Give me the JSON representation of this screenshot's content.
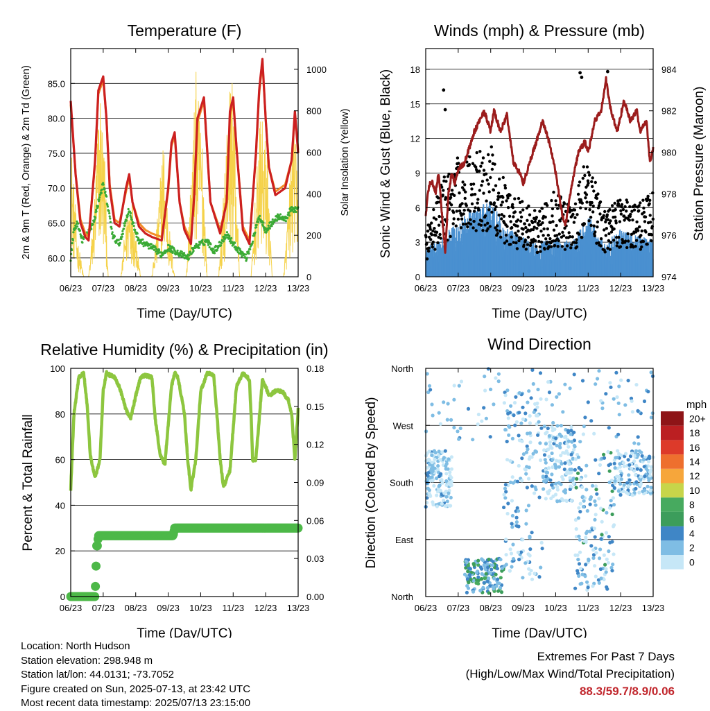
{
  "chart_data": [
    {
      "type": "line",
      "title": "Temperature (F)",
      "xlabel": "Time (Day/UTC)",
      "ylabel_left": "2m & 9m T (Red, Orange) & 2m Td (Green)",
      "ylabel_right": "Solar Insolation (Yellow)",
      "x_ticks": [
        "06/23",
        "07/23",
        "08/23",
        "09/23",
        "10/23",
        "11/23",
        "12/23",
        "13/23"
      ],
      "y_ticks_left": [
        "60.0",
        "65.0",
        "70.0",
        "75.0",
        "80.0",
        "85.0"
      ],
      "y_ticks_right": [
        "0",
        "200",
        "400",
        "600",
        "800",
        "1000"
      ],
      "ylim_left": [
        57.3,
        90.0
      ],
      "ylim_right": [
        0,
        1100
      ],
      "xlim_days": [
        0,
        7
      ],
      "series": [
        {
          "name": "2m T",
          "color": "#cc2020",
          "x": [
            0,
            0.15,
            0.3,
            0.45,
            0.55,
            0.75,
            0.85,
            1.0,
            1.1,
            1.2,
            1.35,
            1.5,
            1.7,
            1.8,
            1.9,
            2.1,
            2.3,
            2.5,
            2.8,
            3.0,
            3.1,
            3.2,
            3.35,
            3.5,
            3.7,
            3.8,
            3.9,
            4.1,
            4.3,
            4.6,
            4.8,
            4.9,
            5.0,
            5.1,
            5.3,
            5.5,
            5.7,
            5.8,
            5.9,
            6.0,
            6.1,
            6.3,
            6.6,
            6.8,
            6.9,
            7.0
          ],
          "values": [
            82.5,
            72.0,
            65.0,
            63.0,
            62.5,
            74.0,
            84.0,
            86.0,
            80.0,
            70.0,
            65.0,
            64.5,
            70.0,
            72.0,
            68.0,
            64.5,
            63.5,
            63.0,
            62.5,
            70.0,
            76.5,
            78.0,
            68.0,
            64.0,
            62.0,
            69.0,
            80.0,
            83.0,
            68.0,
            63.5,
            68.0,
            81.0,
            83.0,
            76.0,
            64.0,
            62.0,
            75.0,
            84.0,
            88.5,
            80.0,
            73.0,
            69.0,
            70.0,
            74.0,
            81.0,
            75.0
          ]
        },
        {
          "name": "9m T",
          "color": "#f28c28",
          "x": [
            0,
            0.15,
            0.3,
            0.45,
            0.55,
            0.75,
            0.85,
            1.0,
            1.1,
            1.2,
            1.35,
            1.5,
            1.7,
            1.8,
            1.9,
            2.1,
            2.3,
            2.5,
            2.8,
            3.0,
            3.1,
            3.2,
            3.35,
            3.5,
            3.7,
            3.8,
            3.9,
            4.1,
            4.3,
            4.6,
            4.8,
            4.9,
            5.0,
            5.1,
            5.3,
            5.5,
            5.7,
            5.8,
            5.9,
            6.0,
            6.1,
            6.3,
            6.6,
            6.8,
            6.9,
            7.0
          ],
          "values": [
            82.0,
            72.0,
            65.5,
            63.5,
            63.0,
            73.5,
            83.5,
            85.5,
            80.0,
            70.5,
            65.5,
            65.0,
            69.5,
            71.5,
            68.0,
            65.0,
            64.0,
            63.5,
            63.0,
            69.5,
            76.0,
            77.5,
            68.0,
            64.5,
            62.5,
            68.5,
            79.5,
            82.5,
            68.0,
            64.0,
            68.0,
            80.5,
            82.5,
            76.0,
            64.5,
            62.5,
            74.5,
            83.5,
            88.0,
            80.0,
            73.0,
            69.5,
            70.5,
            74.0,
            80.5,
            75.5
          ]
        },
        {
          "name": "2m Td",
          "color": "#3aaa35",
          "x": [
            0,
            0.1,
            0.2,
            0.35,
            0.5,
            0.7,
            0.9,
            1.0,
            1.1,
            1.3,
            1.5,
            1.7,
            1.8,
            1.9,
            2.1,
            2.3,
            2.5,
            2.8,
            3.0,
            3.2,
            3.4,
            3.6,
            3.8,
            4.0,
            4.2,
            4.4,
            4.6,
            4.8,
            5.0,
            5.2,
            5.4,
            5.6,
            5.8,
            6.0,
            6.2,
            6.4,
            6.6,
            6.8,
            7.0
          ],
          "values": [
            60.0,
            64.0,
            65.0,
            62.5,
            63.5,
            65.0,
            69.0,
            70.5,
            68.5,
            63.0,
            62.0,
            65.5,
            67.0,
            65.0,
            62.5,
            62.0,
            61.5,
            60.5,
            61.5,
            61.0,
            60.5,
            60.0,
            61.5,
            62.0,
            62.5,
            61.0,
            62.0,
            63.5,
            62.0,
            61.0,
            60.0,
            62.5,
            66.0,
            64.0,
            65.0,
            66.0,
            65.5,
            67.0,
            67.0
          ]
        },
        {
          "name": "Solar Insolation",
          "color": "#f5d24a",
          "x": [
            0,
            0.2,
            0.4,
            0.55,
            0.7,
            0.9,
            1.05,
            1.15,
            1.3,
            1.55,
            1.7,
            1.85,
            2.0,
            2.15,
            2.3,
            2.5,
            2.65,
            2.85,
            3.0,
            3.2,
            3.35,
            3.55,
            3.7,
            3.85,
            4.05,
            4.2,
            4.35,
            4.55,
            4.7,
            4.85,
            5.0,
            5.2,
            5.35,
            5.55,
            5.7,
            5.85,
            6.05,
            6.2,
            6.35,
            6.55,
            6.7,
            6.85,
            7.0
          ],
          "values": [
            700,
            200,
            0,
            0,
            300,
            950,
            600,
            0,
            0,
            0,
            300,
            450,
            250,
            0,
            0,
            0,
            250,
            700,
            300,
            0,
            0,
            0,
            500,
            1000,
            700,
            0,
            0,
            0,
            400,
            900,
            1000,
            0,
            0,
            0,
            450,
            800,
            600,
            0,
            0,
            0,
            350,
            800,
            500
          ],
          "y_axis": "right"
        }
      ]
    },
    {
      "type": "scatter",
      "title": "Winds (mph) & Pressure (mb)",
      "xlabel": "Time (Day/UTC)",
      "ylabel_left": "Sonic Wind & Gust (Blue, Black)",
      "ylabel_right": "Station Pressure (Maroon)",
      "x_ticks": [
        "06/23",
        "07/23",
        "08/23",
        "09/23",
        "10/23",
        "11/23",
        "12/23",
        "13/23"
      ],
      "y_ticks_left": [
        "0",
        "3",
        "6",
        "9",
        "12",
        "15",
        "18"
      ],
      "y_ticks_right": [
        "974",
        "976",
        "978",
        "980",
        "982",
        "984"
      ],
      "ylim_left": [
        0,
        19.8
      ],
      "ylim_right": [
        974,
        985
      ],
      "xlim_days": [
        0,
        7
      ],
      "wind_envelope": {
        "name": "Sonic Wind",
        "color": "#4a90d0",
        "x": [
          0,
          0.5,
          1.0,
          1.5,
          2.0,
          2.5,
          3.0,
          3.5,
          4.0,
          4.5,
          5.0,
          5.5,
          6.0,
          6.5,
          7.0
        ],
        "values": [
          2.0,
          3.0,
          4.0,
          5.0,
          5.5,
          3.5,
          3.0,
          2.5,
          3.0,
          2.5,
          4.5,
          2.5,
          3.5,
          3.0,
          3.0
        ]
      },
      "gust_envelope": {
        "name": "Gust",
        "color": "#000000",
        "x": [
          0,
          0.5,
          1.0,
          1.5,
          2.0,
          2.5,
          3.0,
          3.5,
          4.0,
          4.5,
          5.0,
          5.5,
          6.0,
          6.5,
          7.0
        ],
        "values": [
          3.0,
          6.5,
          8.0,
          8.5,
          9.0,
          6.0,
          5.0,
          4.5,
          6.0,
          4.5,
          8.5,
          4.5,
          5.5,
          5.0,
          6.0
        ]
      },
      "gust_outliers": [
        [
          0.55,
          16.2
        ],
        [
          0.6,
          14.5
        ],
        [
          4.75,
          17.7
        ],
        [
          4.8,
          17.3
        ],
        [
          5.6,
          17.8
        ]
      ],
      "series": [
        {
          "name": "Station Pressure",
          "color": "#9b1c1c",
          "x": [
            0,
            0.1,
            0.2,
            0.3,
            0.4,
            0.5,
            0.6,
            0.7,
            0.8,
            0.9,
            1.0,
            1.2,
            1.5,
            1.8,
            2.0,
            2.1,
            2.3,
            2.5,
            2.7,
            2.9,
            3.0,
            3.2,
            3.4,
            3.6,
            3.8,
            4.0,
            4.2,
            4.3,
            4.5,
            4.7,
            4.9,
            5.0,
            5.2,
            5.4,
            5.55,
            5.7,
            5.9,
            6.1,
            6.3,
            6.5,
            6.6,
            6.8,
            6.9,
            7.0
          ],
          "values": [
            977.0,
            978.4,
            978.6,
            978.0,
            979.0,
            977.0,
            975.2,
            978.0,
            979.0,
            978.5,
            979.2,
            979.5,
            981.0,
            982.0,
            981.0,
            982.0,
            981.0,
            981.8,
            979.5,
            979.0,
            978.5,
            979.5,
            980.5,
            981.5,
            980.5,
            979.0,
            977.0,
            976.5,
            978.5,
            980.0,
            980.5,
            980.0,
            981.5,
            982.0,
            983.5,
            982.0,
            981.0,
            982.5,
            981.5,
            982.0,
            981.0,
            981.5,
            979.5,
            980.2
          ]
        }
      ]
    },
    {
      "type": "line",
      "title": "Relative Humidity (%) & Precipitation (in)",
      "xlabel": "Time (Day/UTC)",
      "ylabel_left": "Percent & Total Rainfall",
      "x_ticks": [
        "06/23",
        "07/23",
        "08/23",
        "09/23",
        "10/23",
        "11/23",
        "12/23",
        "13/23"
      ],
      "y_ticks_left": [
        "0",
        "20",
        "40",
        "60",
        "80",
        "100"
      ],
      "y_ticks_right": [
        "0.00",
        "0.03",
        "0.06",
        "0.09",
        "0.12",
        "0.15",
        "0.18"
      ],
      "ylim_left": [
        0,
        100
      ],
      "ylim_right": [
        0,
        0.18
      ],
      "xlim_days": [
        0,
        7
      ],
      "series": [
        {
          "name": "Relative Humidity",
          "color": "#8dc63f",
          "x": [
            0,
            0.1,
            0.25,
            0.4,
            0.5,
            0.6,
            0.75,
            0.9,
            1.0,
            1.1,
            1.2,
            1.35,
            1.5,
            1.7,
            1.85,
            2.0,
            2.15,
            2.3,
            2.5,
            2.6,
            2.75,
            2.9,
            3.0,
            3.1,
            3.2,
            3.3,
            3.5,
            3.6,
            3.7,
            3.85,
            4.0,
            4.2,
            4.4,
            4.5,
            4.6,
            4.7,
            4.9,
            5.1,
            5.3,
            5.5,
            5.55,
            5.6,
            5.7,
            5.9,
            6.0,
            6.1,
            6.3,
            6.5,
            6.7,
            6.8,
            6.9,
            7.0
          ],
          "values": [
            47,
            80,
            96,
            98,
            85,
            62,
            52,
            60,
            90,
            98,
            97,
            96,
            92,
            82,
            78,
            88,
            96,
            97,
            96,
            78,
            62,
            58,
            75,
            92,
            98,
            96,
            80,
            60,
            47,
            60,
            90,
            98,
            97,
            80,
            60,
            48,
            55,
            92,
            98,
            95,
            80,
            60,
            60,
            95,
            92,
            88,
            90,
            90,
            86,
            80,
            60,
            82
          ]
        },
        {
          "name": "Total Rainfall",
          "color": "#4db848",
          "y_axis": "right",
          "x": [
            0,
            0.4,
            0.75,
            0.8,
            0.82,
            0.85,
            1.2,
            2.0,
            2.8,
            3.15,
            3.2,
            3.5,
            4.5,
            5.5,
            6.5,
            7.0
          ],
          "values": [
            0.0,
            0.0,
            0.0,
            0.04,
            0.04,
            0.048,
            0.048,
            0.048,
            0.048,
            0.048,
            0.054,
            0.054,
            0.054,
            0.054,
            0.054,
            0.054
          ]
        }
      ]
    },
    {
      "type": "scatter",
      "title": "Wind Direction",
      "xlabel": "Time (Day/UTC)",
      "ylabel_left": "Direction (Colored By Speed)",
      "x_ticks": [
        "06/23",
        "07/23",
        "08/23",
        "09/23",
        "10/23",
        "11/23",
        "12/23",
        "13/23"
      ],
      "y_ticks_left": [
        "North",
        "East",
        "South",
        "West",
        "North"
      ],
      "ylim_degrees": [
        0,
        360
      ],
      "xlim_days": [
        0,
        7
      ],
      "colorbar_title": "mph",
      "colorbar_labels": [
        "0",
        "2",
        "4",
        "6",
        "8",
        "10",
        "12",
        "14",
        "16",
        "18",
        "20+"
      ],
      "colorbar_colors": [
        "#c6e7f7",
        "#7fbde4",
        "#3f86c6",
        "#3c9d5b",
        "#47aa5f",
        "#c7d54a",
        "#f6a63b",
        "#ee6f2e",
        "#dd3a2a",
        "#bb1f22",
        "#8e1417"
      ],
      "clusters": [
        {
          "x_range": [
            0.0,
            0.8
          ],
          "dir_range": [
            140,
            230
          ],
          "speed_range": [
            0,
            4
          ]
        },
        {
          "x_range": [
            1.2,
            2.4
          ],
          "dir_range": [
            5,
            60
          ],
          "speed_range": [
            2,
            8
          ]
        },
        {
          "x_range": [
            2.4,
            3.6
          ],
          "dir_range": [
            20,
            330
          ],
          "speed_range": [
            0,
            4
          ]
        },
        {
          "x_range": [
            3.6,
            4.6
          ],
          "dir_range": [
            150,
            270
          ],
          "speed_range": [
            0,
            4
          ]
        },
        {
          "x_range": [
            4.6,
            5.8
          ],
          "dir_range": [
            10,
            230
          ],
          "speed_range": [
            0,
            6
          ]
        },
        {
          "x_range": [
            5.8,
            7.0
          ],
          "dir_range": [
            160,
            230
          ],
          "speed_range": [
            0,
            5
          ]
        }
      ]
    }
  ],
  "info": {
    "location": "Location: North Hudson",
    "elevation": "Station elevation: 298.948 m",
    "latlon": "Station lat/lon: 44.0131; -73.7052",
    "created": "Figure created on Sun, 2025-07-13, at 23:42 UTC",
    "timestamp": "Most recent data timestamp: 2025/07/13 23:15:00"
  },
  "extremes": {
    "title": "Extremes For Past 7 Days",
    "subtitle": "(High/Low/Max Wind/Total Precipitation)",
    "values": "88.3/59.7/8.9/0.06"
  }
}
